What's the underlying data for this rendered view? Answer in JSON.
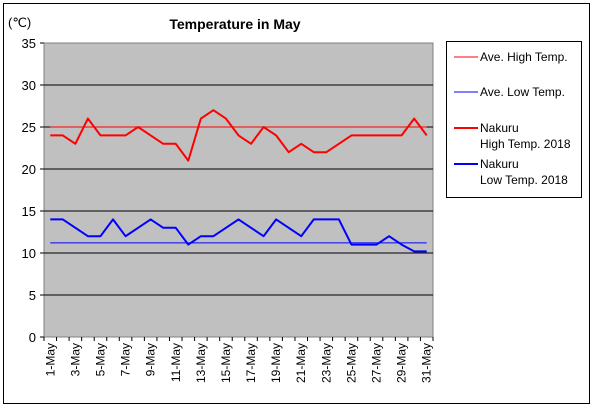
{
  "chart_data": {
    "type": "line",
    "title": "Temperature in May",
    "unit_label": "(℃)",
    "ylim": [
      0,
      35
    ],
    "yticks": [
      "0",
      "5",
      "10",
      "15",
      "20",
      "25",
      "30",
      "35"
    ],
    "grid": true,
    "legend_position": "right",
    "categories": [
      "1-May",
      "2-May",
      "3-May",
      "4-May",
      "5-May",
      "6-May",
      "7-May",
      "8-May",
      "9-May",
      "10-May",
      "11-May",
      "12-May",
      "13-May",
      "14-May",
      "15-May",
      "16-May",
      "17-May",
      "18-May",
      "19-May",
      "20-May",
      "21-May",
      "22-May",
      "23-May",
      "24-May",
      "25-May",
      "26-May",
      "27-May",
      "28-May",
      "29-May",
      "30-May",
      "31-May"
    ],
    "xtick_labels": [
      "1-May",
      "3-May",
      "5-May",
      "7-May",
      "9-May",
      "11-May",
      "13-May",
      "15-May",
      "17-May",
      "19-May",
      "21-May",
      "23-May",
      "25-May",
      "27-May",
      "29-May",
      "31-May"
    ],
    "series": [
      {
        "name": "Ave. High Temp.",
        "color": "#ff0000",
        "width": 1,
        "constant": 25
      },
      {
        "name": "Ave. Low Temp.",
        "color": "#0000ff",
        "width": 1,
        "constant": 11.2
      },
      {
        "name": "Nakuru High Temp. 2018",
        "legend_lines": [
          "Nakuru",
          "High Temp. 2018"
        ],
        "color": "#ff0000",
        "width": 2,
        "values": [
          24,
          24,
          23,
          26,
          24,
          24,
          24,
          25,
          24,
          23,
          23,
          21,
          26,
          27,
          26,
          24,
          23,
          25,
          24,
          22,
          23,
          22,
          22,
          23,
          24,
          24,
          24,
          24,
          24,
          26,
          24
        ]
      },
      {
        "name": "Nakuru Low Temp. 2018",
        "legend_lines": [
          "Nakuru",
          "Low Temp. 2018"
        ],
        "color": "#0000ff",
        "width": 2,
        "values": [
          14,
          14,
          13,
          12,
          12,
          14,
          12,
          13,
          14,
          13,
          13,
          11,
          12,
          12,
          13,
          14,
          13,
          12,
          14,
          13,
          12,
          14,
          14,
          14,
          11,
          11,
          11,
          12,
          11,
          10.2,
          10.2
        ]
      }
    ]
  }
}
